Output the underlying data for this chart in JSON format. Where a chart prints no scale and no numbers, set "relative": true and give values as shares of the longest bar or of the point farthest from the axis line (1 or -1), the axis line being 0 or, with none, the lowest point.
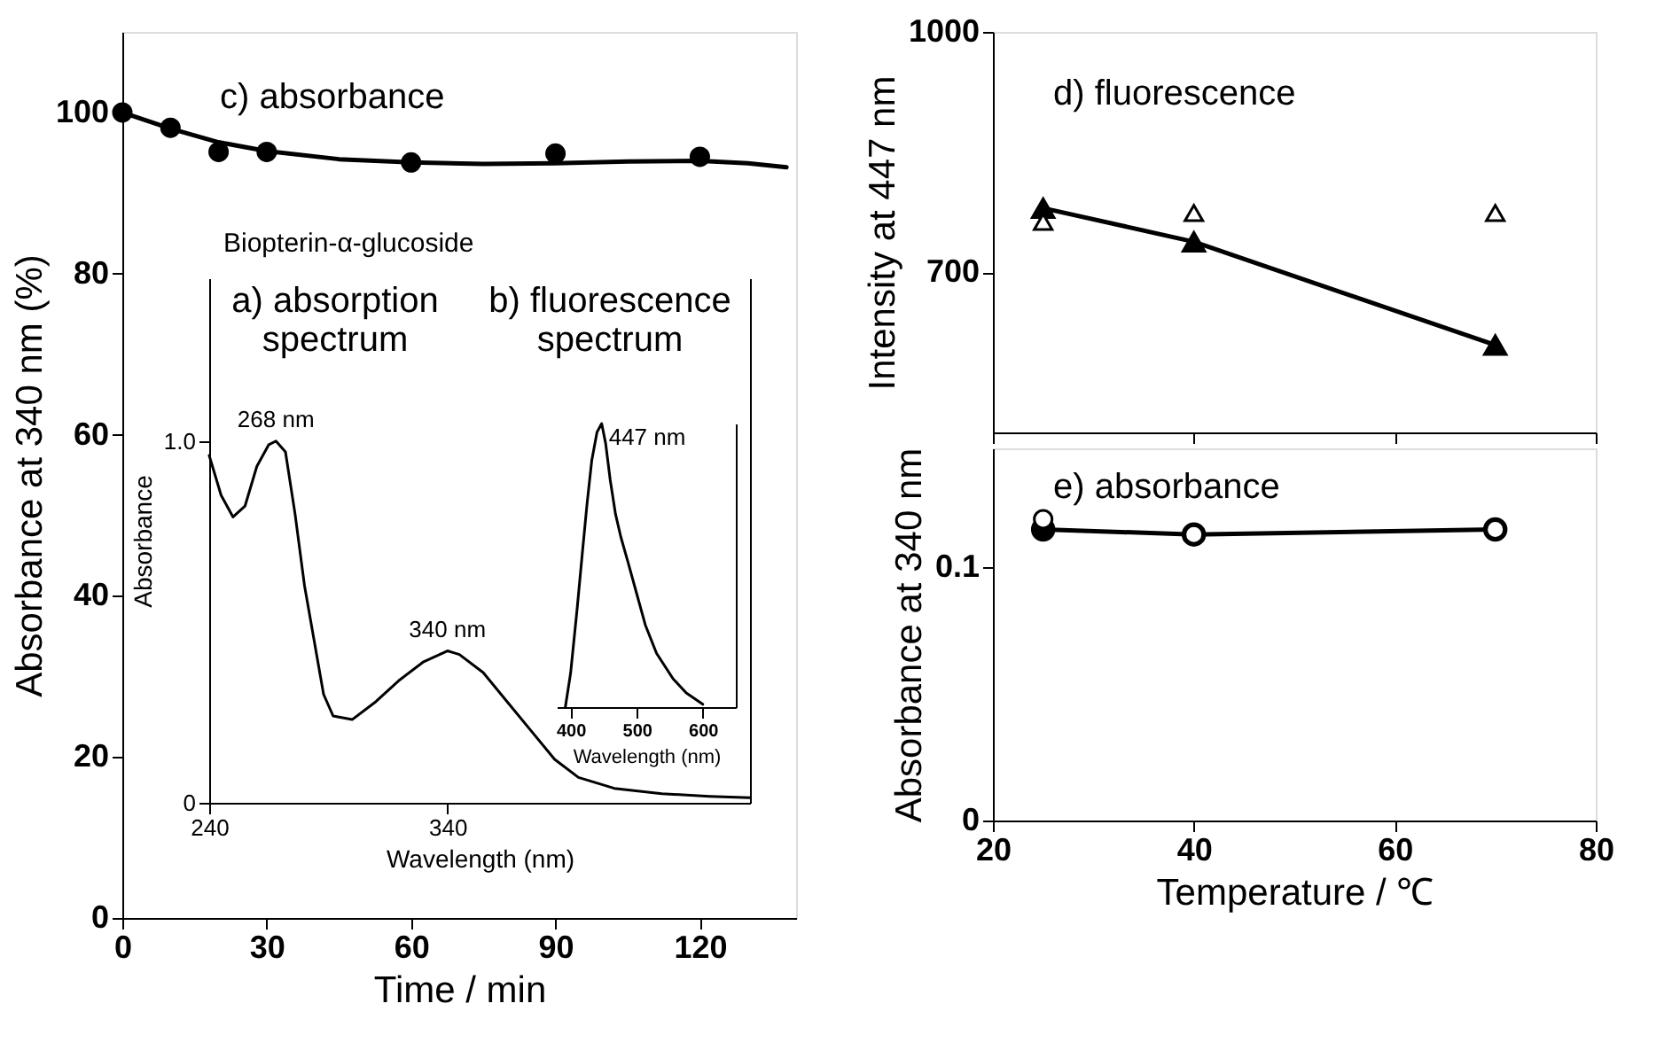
{
  "chart_data": [
    {
      "type": "scatter",
      "xlabel": "Time / min",
      "ylabel": "Absorbance  at 340 nm (%)",
      "xlim": [
        0,
        140
      ],
      "ylim": [
        0,
        110
      ],
      "xticks": [
        0,
        30,
        60,
        90,
        120
      ],
      "yticks": [
        0,
        20,
        40,
        60,
        80,
        100
      ],
      "annotations": [
        "c) absorbance",
        "Biopterin-α-glucoside"
      ],
      "series": [
        {
          "type": "line",
          "marker": "none",
          "color": "#000000",
          "x": [
            0,
            10,
            20,
            30,
            45,
            60,
            75,
            90,
            105,
            120,
            130,
            138
          ],
          "values": [
            100,
            98.0,
            96.3,
            95.2,
            94.2,
            93.8,
            93.6,
            93.7,
            93.9,
            94.0,
            93.7,
            93.2
          ]
        },
        {
          "type": "scatter",
          "marker": "circle",
          "color": "#000000",
          "x": [
            0,
            10,
            20,
            30,
            60,
            90,
            120
          ],
          "values": [
            100,
            98.1,
            95.1,
            95.1,
            93.8,
            94.9,
            94.5
          ]
        }
      ]
    },
    {
      "type": "line",
      "title": "a) absorption\nspectrum",
      "xlabel": "Wavelength (nm)",
      "ylabel": "Absorbance",
      "xlim": [
        240,
        467
      ],
      "ylim": [
        0,
        1.45
      ],
      "xticks": [
        240,
        340
      ],
      "yticks": [
        0,
        {
          "value": 1,
          "label": "1.0"
        }
      ],
      "annotations": [
        {
          "text": "268 nm",
          "x": 268,
          "y": 1.0
        },
        {
          "text": "340 nm",
          "x": 340,
          "y": 0.42
        }
      ],
      "series": [
        {
          "color": "#000000",
          "x": [
            240,
            245,
            250,
            255,
            260,
            265,
            268,
            272,
            276,
            280,
            284,
            288,
            292,
            300,
            310,
            320,
            330,
            340,
            345,
            355,
            365,
            375,
            385,
            395,
            410,
            430,
            450,
            467
          ],
          "values": [
            0.96,
            0.85,
            0.79,
            0.82,
            0.93,
            0.99,
            1.0,
            0.97,
            0.8,
            0.6,
            0.45,
            0.3,
            0.24,
            0.23,
            0.28,
            0.34,
            0.39,
            0.42,
            0.41,
            0.36,
            0.28,
            0.2,
            0.12,
            0.07,
            0.04,
            0.025,
            0.018,
            0.014
          ]
        }
      ]
    },
    {
      "type": "line",
      "title": "b) fluorescence\nspectrum",
      "xlabel": "Wavelength (nm)",
      "relative": true,
      "xlim": [
        379,
        650
      ],
      "xticks": [
        400,
        500,
        600
      ],
      "annotations": [
        {
          "text": "447 nm",
          "x": 447,
          "y": 1
        }
      ],
      "series": [
        {
          "color": "#000000",
          "x": [
            392,
            400,
            410,
            418,
            425,
            432,
            440,
            447,
            453,
            460,
            468,
            476,
            487,
            500,
            513,
            530,
            555,
            575,
            600
          ],
          "values": [
            0,
            0.12,
            0.35,
            0.55,
            0.72,
            0.87,
            0.97,
            1.0,
            0.93,
            0.8,
            0.68,
            0.6,
            0.51,
            0.4,
            0.29,
            0.19,
            0.1,
            0.05,
            0.01
          ]
        }
      ]
    },
    {
      "type": "line",
      "ylabel": "Intensity at 447 nm",
      "xlim": [
        20,
        80
      ],
      "ylim": [
        500,
        1000
      ],
      "xticks": [
        20,
        40,
        60,
        80
      ],
      "yticks": [
        700,
        {
          "value": 1000,
          "label": "1000"
        }
      ],
      "tick_labels": "y",
      "annotations": [
        "d) fluorescence"
      ],
      "series": [
        {
          "type": "line",
          "marker": "triangle",
          "color": "#000000",
          "x": [
            25,
            40,
            70
          ],
          "values": [
            780,
            738,
            609
          ]
        },
        {
          "type": "scatter",
          "marker": "triangle",
          "color": "#ffffff",
          "x": [
            25,
            40,
            70
          ],
          "values": [
            763,
            774,
            774
          ]
        }
      ]
    },
    {
      "type": "line",
      "xlabel": "Temperature / ℃",
      "ylabel": "Absorbance at 340 nm",
      "xlim": [
        20,
        80
      ],
      "ylim": [
        0,
        0.147
      ],
      "xticks": [
        20,
        40,
        60,
        80
      ],
      "yticks": [
        0,
        0.1
      ],
      "annotations": [
        "e) absorbance"
      ],
      "series": [
        {
          "type": "line",
          "marker": "circle",
          "color": "#000000",
          "x": [
            25,
            40,
            70
          ],
          "values": [
            0.115,
            0.113,
            0.115
          ]
        },
        {
          "type": "scatter",
          "marker": "circle",
          "color": "#ffffff",
          "x": [
            25,
            40,
            70
          ],
          "values": [
            0.119,
            0.113,
            0.115
          ]
        }
      ]
    }
  ]
}
